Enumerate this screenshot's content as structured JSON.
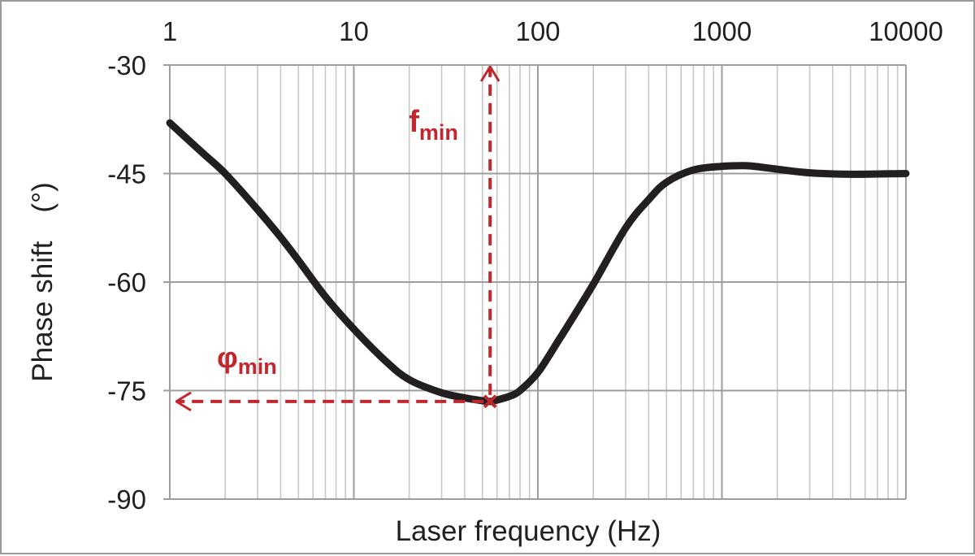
{
  "chart_data": {
    "type": "line",
    "title": "",
    "xlabel": "Laser frequency (Hz)",
    "ylabel": "Phase shift　(°)",
    "x_scale": "log",
    "xlim": [
      1,
      10000
    ],
    "ylim": [
      -90,
      -30
    ],
    "x_ticks": [
      1,
      10,
      100,
      1000,
      10000
    ],
    "x_tick_labels": [
      "1",
      "10",
      "100",
      "1000",
      "10000"
    ],
    "y_ticks": [
      -30,
      -45,
      -60,
      -75,
      -90
    ],
    "y_tick_labels": [
      "-30",
      "-45",
      "-60",
      "-75",
      "-90"
    ],
    "grid": true,
    "legend": "none",
    "series_color": "#231f20",
    "annotation_color": "#c1272d",
    "series": [
      {
        "x": [
          1,
          1.5,
          2,
          3,
          4,
          5,
          7,
          10,
          15,
          20,
          30,
          40,
          50,
          55,
          60,
          70,
          80,
          100,
          130,
          150,
          200,
          300,
          400,
          500,
          700,
          1000,
          1300,
          1500,
          2000,
          3000,
          5000,
          10000
        ],
        "y": [
          -38,
          -42.1,
          -45,
          -50,
          -53.8,
          -57,
          -62,
          -66.5,
          -71,
          -73.5,
          -75.3,
          -76,
          -76.4,
          -76.5,
          -76.3,
          -75.8,
          -75,
          -72.5,
          -68,
          -65.5,
          -60.3,
          -52.5,
          -48.6,
          -46.2,
          -44.5,
          -44,
          -43.9,
          -44,
          -44.4,
          -44.9,
          -45.1,
          -45
        ]
      }
    ],
    "annotations": [
      {
        "label": "f",
        "subscript": "min",
        "at_x": 55,
        "direction": "up"
      },
      {
        "label": "φ",
        "subscript": "min",
        "at_y": -76.5,
        "direction": "left"
      }
    ],
    "marker": {
      "x": 55,
      "y": -76.5
    }
  }
}
